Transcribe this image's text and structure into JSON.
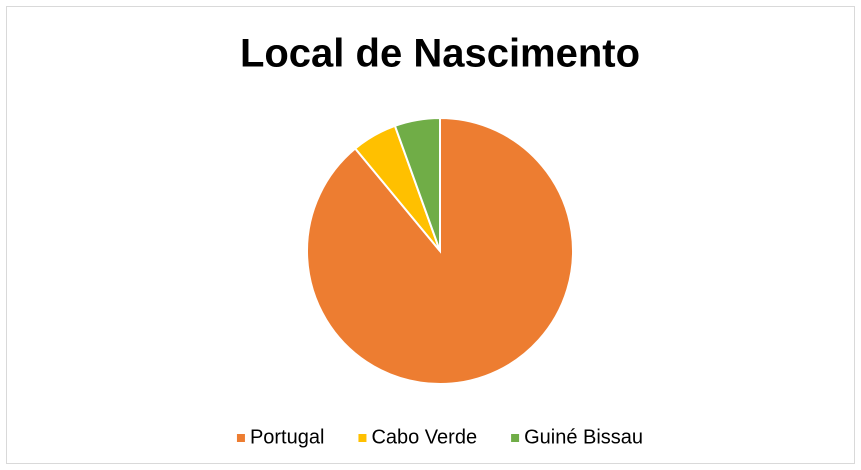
{
  "chart_data": {
    "type": "pie",
    "title": "Local de Nascimento",
    "categories": [
      "Portugal",
      "Cabo Verde",
      "Guiné Bissau"
    ],
    "values": [
      89,
      5.5,
      5.5
    ],
    "colors": [
      "#ed7d31",
      "#ffc000",
      "#70ad47"
    ],
    "legend": "bottom"
  }
}
